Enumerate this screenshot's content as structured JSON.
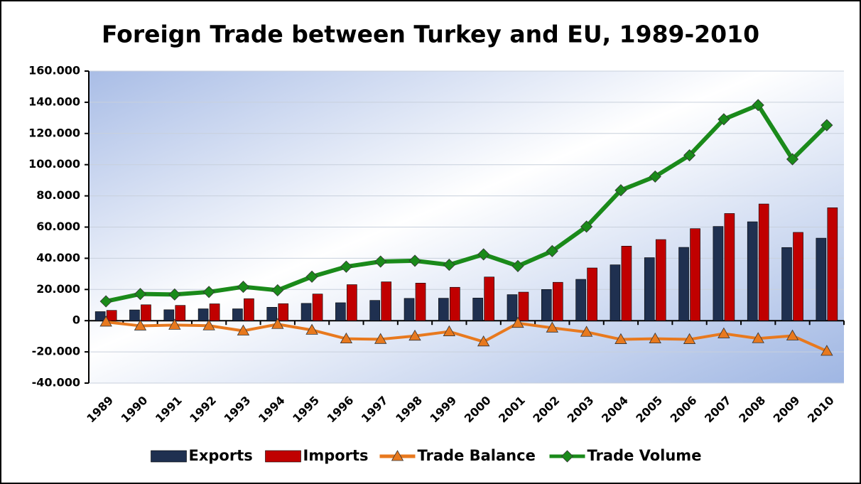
{
  "chart_data": {
    "type": "combo",
    "title": "Foreign Trade between Turkey and EU, 1989-2010",
    "categories": [
      "1989",
      "1990",
      "1991",
      "1992",
      "1993",
      "1994",
      "1995",
      "1996",
      "1997",
      "1998",
      "1999",
      "2000",
      "2001",
      "2002",
      "2003",
      "2004",
      "2005",
      "2006",
      "2007",
      "2008",
      "2009",
      "2010"
    ],
    "series": [
      {
        "name": "Exports",
        "type": "bar",
        "color": "#1f3050",
        "values": [
          5800,
          6900,
          7000,
          7600,
          7600,
          8600,
          11100,
          11500,
          13000,
          14300,
          14400,
          14500,
          16700,
          20000,
          26500,
          35800,
          40400,
          47000,
          60400,
          63400,
          46900,
          52900
        ]
      },
      {
        "name": "Imports",
        "type": "bar",
        "color": "#c00000",
        "values": [
          6600,
          10200,
          9800,
          10800,
          14100,
          10900,
          17100,
          23100,
          24900,
          24100,
          21400,
          28000,
          18300,
          24600,
          33800,
          47800,
          52000,
          59000,
          68700,
          74800,
          56600,
          72400
        ]
      },
      {
        "name": "Trade Balance",
        "type": "line",
        "marker": "triangle",
        "color": "#e8791e",
        "values": [
          -800,
          -3300,
          -2800,
          -3200,
          -6500,
          -2300,
          -6000,
          -11600,
          -11900,
          -9800,
          -7000,
          -13500,
          -1600,
          -4600,
          -7300,
          -12000,
          -11600,
          -12000,
          -8300,
          -11400,
          -9700,
          -19500
        ]
      },
      {
        "name": "Trade Volume",
        "type": "line",
        "marker": "diamond",
        "color": "#1a8a1a",
        "values": [
          12400,
          17100,
          16800,
          18400,
          21700,
          19500,
          28200,
          34600,
          37900,
          38400,
          35800,
          42500,
          35000,
          44600,
          60300,
          83600,
          92400,
          106000,
          129100,
          138200,
          103500,
          125300
        ]
      }
    ],
    "ylim": [
      -40000,
      160000
    ],
    "yticks": [
      {
        "value": -40000,
        "label": "-40.000"
      },
      {
        "value": -20000,
        "label": "-20.000"
      },
      0,
      {
        "value": 20000,
        "label": "20.000"
      },
      {
        "value": 40000,
        "label": "40.000"
      },
      {
        "value": 60000,
        "label": "60.000"
      },
      {
        "value": 80000,
        "label": "80.000"
      },
      {
        "value": 100000,
        "label": "100.000"
      },
      {
        "value": 120000,
        "label": "120.000"
      },
      {
        "value": 140000,
        "label": "140.000"
      },
      {
        "value": 160000,
        "label": "160.000"
      }
    ],
    "grid": true,
    "legend": "bottom"
  }
}
